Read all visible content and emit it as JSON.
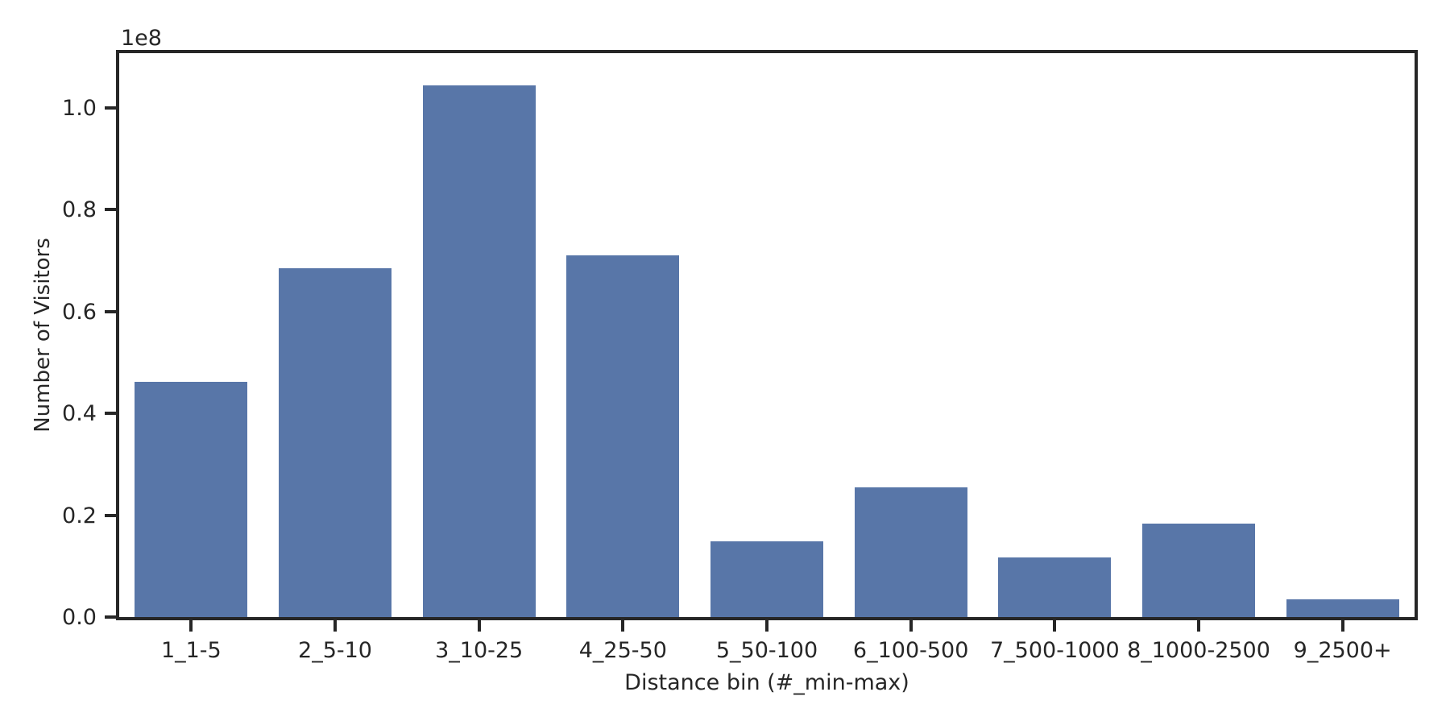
{
  "chart_data": {
    "type": "bar",
    "title": "",
    "xlabel": "Distance bin (#_min-max)",
    "ylabel": "Number of Visitors",
    "offset_text": "1e8",
    "categories": [
      "1_1-5",
      "2_5-10",
      "3_10-25",
      "4_25-50",
      "5_50-100",
      "6_100-500",
      "7_500-1000",
      "8_1000-2500",
      "9_2500+"
    ],
    "values": [
      46200000,
      68400000,
      104400000,
      71000000,
      14900000,
      25400000,
      11700000,
      18300000,
      3500000
    ],
    "y_tick_labels": [
      "0.0",
      "0.2",
      "0.4",
      "0.6",
      "0.8",
      "1.0"
    ],
    "y_tick_values": [
      0,
      20000000,
      40000000,
      60000000,
      80000000,
      100000000
    ],
    "ylim": [
      0,
      110700000
    ],
    "grid": false,
    "legend": "none",
    "bar_color": "#5876a8",
    "axis_color": "#262626"
  }
}
